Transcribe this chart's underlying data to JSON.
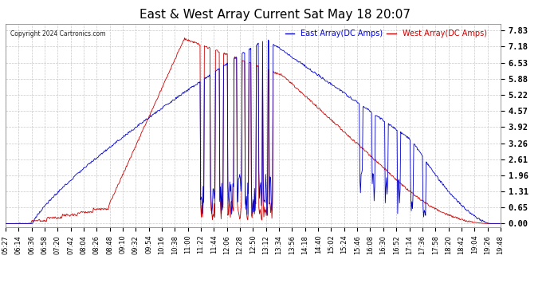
{
  "title": "East & West Array Current Sat May 18 20:07",
  "copyright": "Copyright 2024 Cartronics.com",
  "legend_east": "East Array(DC Amps)",
  "legend_west": "West Array(DC Amps)",
  "east_color": "#0000cc",
  "west_color": "#cc0000",
  "background_color": "#ffffff",
  "grid_color": "#bbbbbb",
  "yticks": [
    0.0,
    0.65,
    1.31,
    1.96,
    2.61,
    3.26,
    3.92,
    4.57,
    5.22,
    5.88,
    6.53,
    7.18,
    7.83
  ],
  "ymin": -0.15,
  "ymax": 8.1,
  "xtick_labels": [
    "05:27",
    "06:14",
    "06:36",
    "06:58",
    "07:20",
    "07:42",
    "08:04",
    "08:26",
    "08:48",
    "09:10",
    "09:32",
    "09:54",
    "10:16",
    "10:38",
    "11:00",
    "11:22",
    "11:44",
    "12:06",
    "12:28",
    "12:50",
    "13:12",
    "13:34",
    "13:56",
    "14:18",
    "14:40",
    "15:02",
    "15:24",
    "15:46",
    "16:08",
    "16:30",
    "16:52",
    "17:14",
    "17:36",
    "17:58",
    "18:20",
    "18:42",
    "19:04",
    "19:26",
    "19:48"
  ],
  "title_fontsize": 11,
  "ytick_fontsize": 7.5,
  "xtick_fontsize": 6
}
